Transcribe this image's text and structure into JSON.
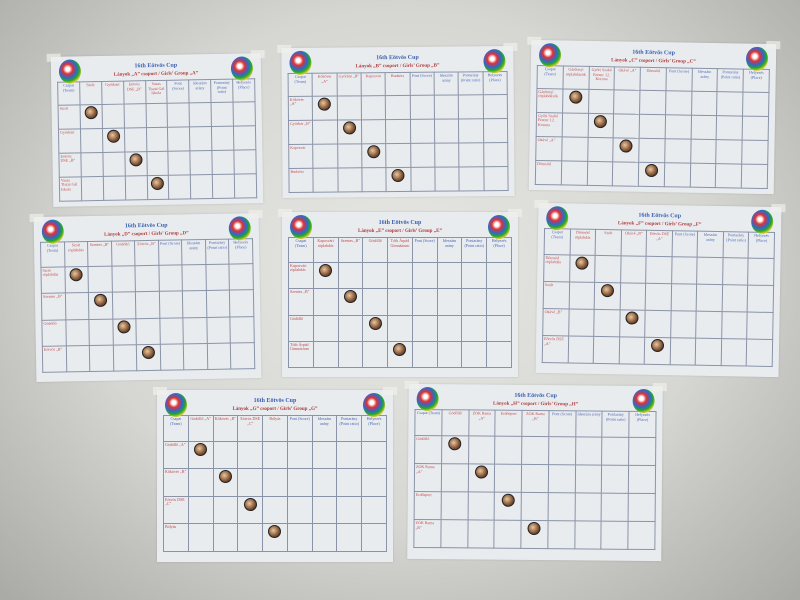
{
  "cup_title": "16th Eötvös Cup",
  "stat_headers": [
    "Pont (Score)",
    "Ideszám arány",
    "Pontarány (Point ratio)",
    "Helyezés (Place)"
  ],
  "team_header": "Csapat (Team)",
  "icons": {
    "logo": "tournament-logo",
    "ball": "volleyball-icon"
  },
  "colors": {
    "title": "#3a5fb0",
    "subtitle": "#b03a3a",
    "team_text": "#c04a4a",
    "grid": "#8a93a8"
  },
  "sheets": [
    {
      "group": "Lányok „A” csoport / Girls’ Group „A”",
      "teams": [
        "Szolt",
        "Győrbárt",
        "Eötvös DSE „B”",
        "Vasas Tiszai Gál Iskola"
      ]
    },
    {
      "group": "Lányok „B” csoport / Girls’ Group „B”",
      "teams": [
        "Kőkövér „A”",
        "Győrbár „B”",
        "Kaposvár",
        "Budaörs"
      ]
    },
    {
      "group": "Lányok „C” csoport / Girls’ Group „C”",
      "teams": [
        "Gárdonyi röplabdázók",
        "Győri Szabó Ferenc 12. Korona",
        "Okávé „A”",
        "Dömsöd"
      ]
    },
    {
      "group": "Lányok „D” csoport / Girls’ Group „D”",
      "teams": [
        "Szolt röplabdás",
        "Szentes „B”",
        "Gödöllő",
        "Eötvös „B”"
      ]
    },
    {
      "group": "Lányok „E” csoport / Girls’ Group „E”",
      "teams": [
        "Kaposvári röplabdás",
        "Szentes „B”",
        "Gödöllő",
        "Tóth Árpád Gimnázium"
      ]
    },
    {
      "group": "Lányok „F” csoport / Girls’ Group „F”",
      "teams": [
        "Dömsöd röplabdás",
        "Szolt",
        "Okávé „B”",
        "Eötvös DSE „A”"
      ]
    },
    {
      "group": "Lányok „G” csoport / Girls’ Group „G”",
      "teams": [
        "Gödöllő „A”",
        "Kőkövér „B”",
        "Eötvös DSE „C”",
        "Bólyás"
      ]
    },
    {
      "group": "Lányok „H” csoport / Girls’ Group „H”",
      "teams": [
        "Gödöllő",
        "ZÓK Rama „A”",
        "Erdősport",
        "ZÓK Rama „B”"
      ]
    }
  ]
}
